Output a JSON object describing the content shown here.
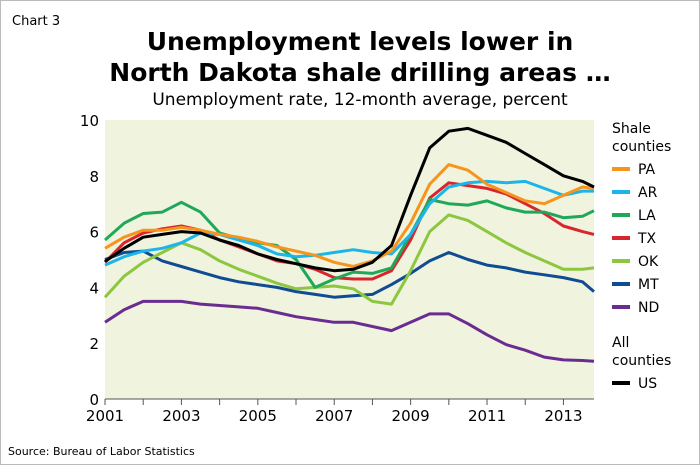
{
  "chart_data": {
    "type": "line",
    "label": "Chart 3",
    "title": [
      "Unemployment levels lower in",
      "North Dakota shale drilling areas …"
    ],
    "subtitle": "Unemployment rate, 12-month average, percent",
    "source": "Source: Bureau of Labor Statistics",
    "xlabel": "",
    "ylabel": "",
    "xlim": [
      2001,
      2013.8
    ],
    "ylim": [
      0,
      10
    ],
    "xticks": [
      2001,
      2002,
      2003,
      2004,
      2005,
      2006,
      2007,
      2008,
      2009,
      2010,
      2011,
      2012,
      2013
    ],
    "xtick_labels": [
      "2001",
      "2003",
      "2005",
      "2007",
      "2009",
      "2011",
      "2013"
    ],
    "yticks": [
      "0",
      "2",
      "4",
      "6",
      "8",
      "10"
    ],
    "grid": false,
    "background": "#f0f3de",
    "legend_position": "right",
    "legend_groups": [
      {
        "heading": [
          "Shale",
          "counties"
        ],
        "names": [
          "PA",
          "AR",
          "LA",
          "TX",
          "OK",
          "MT",
          "ND"
        ]
      },
      {
        "heading": [
          "All",
          "counties"
        ],
        "names": [
          "US"
        ]
      }
    ],
    "x": [
      2001,
      2001.5,
      2002,
      2002.5,
      2003,
      2003.5,
      2004,
      2004.5,
      2005,
      2005.5,
      2006,
      2006.5,
      2007,
      2007.5,
      2008,
      2008.5,
      2009,
      2009.5,
      2010,
      2010.5,
      2011,
      2011.5,
      2012,
      2012.5,
      2013,
      2013.5,
      2013.8
    ],
    "series": [
      {
        "name": "US",
        "color": "#000000",
        "values": [
          4.93,
          5.4,
          5.8,
          5.9,
          6.0,
          5.95,
          5.7,
          5.5,
          5.2,
          5.0,
          4.85,
          4.7,
          4.6,
          4.65,
          4.9,
          5.5,
          7.3,
          9.0,
          9.6,
          9.7,
          9.45,
          9.2,
          8.8,
          8.4,
          8.0,
          7.8,
          7.6
        ]
      },
      {
        "name": "PA",
        "color": "#f7941d",
        "values": [
          5.4,
          5.8,
          6.05,
          6.05,
          6.15,
          6.05,
          5.9,
          5.8,
          5.65,
          5.45,
          5.3,
          5.15,
          4.9,
          4.75,
          4.95,
          5.3,
          6.3,
          7.7,
          8.4,
          8.2,
          7.7,
          7.4,
          7.1,
          7.0,
          7.3,
          7.6,
          7.55
        ]
      },
      {
        "name": "AR",
        "color": "#1cb5ea",
        "values": [
          4.8,
          5.1,
          5.3,
          5.4,
          5.6,
          5.95,
          5.9,
          5.7,
          5.5,
          5.2,
          5.1,
          5.15,
          5.25,
          5.35,
          5.25,
          5.2,
          5.9,
          7.0,
          7.6,
          7.75,
          7.8,
          7.75,
          7.8,
          7.55,
          7.3,
          7.45,
          7.45
        ]
      },
      {
        "name": "LA",
        "color": "#1fa85a",
        "values": [
          5.7,
          6.3,
          6.65,
          6.7,
          7.05,
          6.7,
          5.95,
          5.75,
          5.6,
          5.5,
          5.0,
          4.0,
          4.3,
          4.55,
          4.5,
          4.7,
          5.9,
          7.15,
          7.0,
          6.95,
          7.1,
          6.85,
          6.7,
          6.7,
          6.5,
          6.55,
          6.75
        ]
      },
      {
        "name": "TX",
        "color": "#d7262e",
        "values": [
          4.9,
          5.6,
          5.95,
          6.1,
          6.2,
          6.05,
          5.7,
          5.45,
          5.2,
          4.95,
          4.85,
          4.65,
          4.35,
          4.3,
          4.3,
          4.6,
          5.7,
          7.2,
          7.75,
          7.65,
          7.55,
          7.35,
          7.0,
          6.65,
          6.2,
          6.0,
          5.9
        ]
      },
      {
        "name": "OK",
        "color": "#8dc63f",
        "values": [
          3.65,
          4.4,
          4.9,
          5.25,
          5.6,
          5.35,
          4.95,
          4.65,
          4.4,
          4.15,
          3.95,
          4.0,
          4.05,
          3.95,
          3.5,
          3.4,
          4.6,
          6.0,
          6.6,
          6.4,
          6.0,
          5.6,
          5.25,
          4.95,
          4.65,
          4.65,
          4.7
        ]
      },
      {
        "name": "MT",
        "color": "#0f4c92",
        "values": [
          5.0,
          5.25,
          5.3,
          4.95,
          4.75,
          4.55,
          4.35,
          4.2,
          4.1,
          4.0,
          3.85,
          3.75,
          3.65,
          3.7,
          3.75,
          4.1,
          4.5,
          4.95,
          5.25,
          5.0,
          4.8,
          4.7,
          4.55,
          4.45,
          4.35,
          4.2,
          3.85
        ]
      },
      {
        "name": "ND",
        "color": "#6b2c91",
        "values": [
          2.75,
          3.2,
          3.5,
          3.5,
          3.5,
          3.4,
          3.35,
          3.3,
          3.25,
          3.1,
          2.95,
          2.85,
          2.75,
          2.75,
          2.6,
          2.45,
          2.75,
          3.05,
          3.05,
          2.7,
          2.3,
          1.95,
          1.75,
          1.5,
          1.4,
          1.38,
          1.35
        ]
      }
    ]
  }
}
